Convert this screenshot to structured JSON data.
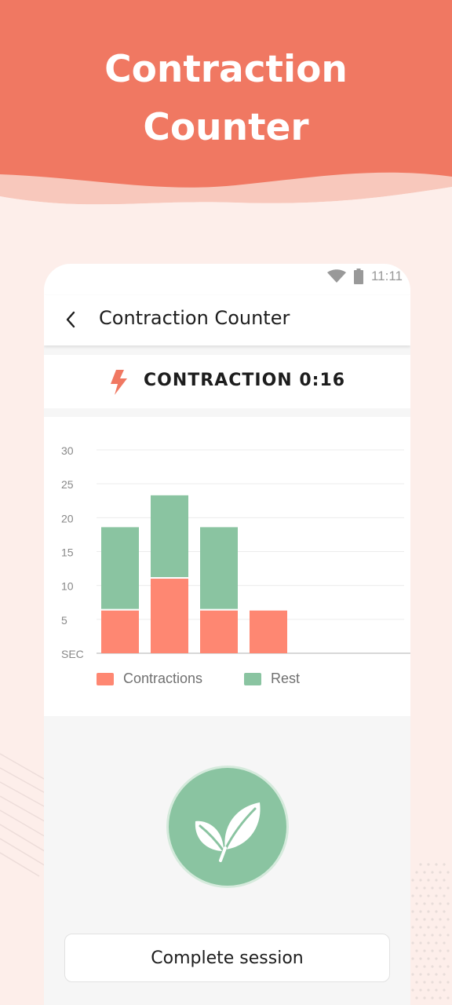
{
  "hero": {
    "title_line1": "Contraction",
    "title_line2": "Counter"
  },
  "status_bar": {
    "time": "11:11",
    "icons": [
      "wifi-icon",
      "battery-icon"
    ]
  },
  "app_bar": {
    "title": "Contraction Counter",
    "back_icon": "chevron-left-icon"
  },
  "contraction": {
    "icon": "lightning-bolt-icon",
    "label": "CONTRACTION 0:16"
  },
  "colors": {
    "accent": "#f07862",
    "contraction": "#fe8772",
    "rest": "#8ac4a1"
  },
  "chart_data": {
    "type": "bar",
    "stacked": true,
    "categories": [
      "",
      "",
      "",
      ""
    ],
    "y_tick_labels": [
      "SEC",
      "5",
      "10",
      "15",
      "20",
      "25",
      "30"
    ],
    "ylim": [
      0,
      30
    ],
    "series": [
      {
        "name": "Contractions",
        "values": [
          6.3,
          11,
          6.3,
          6.3
        ]
      },
      {
        "name": "Rest",
        "values": [
          12.3,
          12.3,
          12.3,
          0
        ]
      }
    ],
    "legend": [
      "Contractions",
      "Rest"
    ],
    "legend_position": "bottom",
    "grid": true
  },
  "session": {
    "leaf_icon": "leaf-icon",
    "complete_label": "Complete session"
  }
}
